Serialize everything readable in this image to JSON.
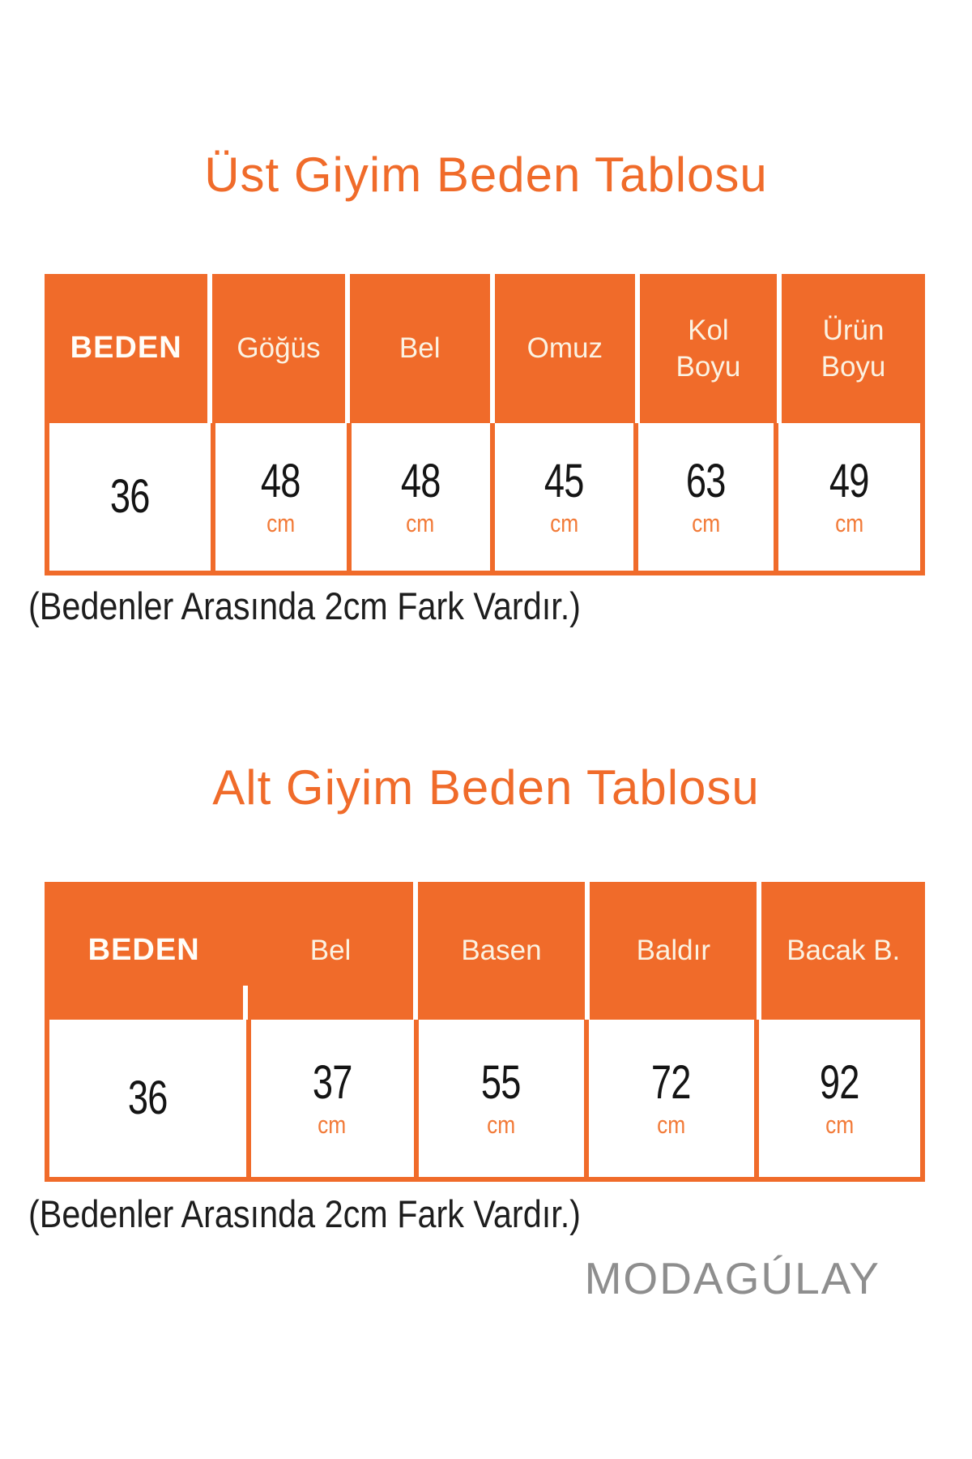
{
  "accent_color": "#F06B2A",
  "brand": "MODAGÚLAY",
  "upper_table": {
    "title": "Üst Giyim Beden Tablosu",
    "headers": [
      "BEDEN",
      "Göğüs",
      "Bel",
      "Omuz",
      "Kol\nBoyu",
      "Ürün\nBoyu"
    ],
    "size": "36",
    "cells": [
      {
        "value": "48",
        "unit": "cm"
      },
      {
        "value": "48",
        "unit": "cm"
      },
      {
        "value": "45",
        "unit": "cm"
      },
      {
        "value": "63",
        "unit": "cm"
      },
      {
        "value": "49",
        "unit": "cm"
      }
    ],
    "note": "(Bedenler Arasında 2cm Fark Vardır.)"
  },
  "lower_table": {
    "title": "Alt Giyim Beden Tablosu",
    "headers": [
      "BEDEN",
      "Bel",
      "Basen",
      "Baldır",
      "Bacak B."
    ],
    "size": "36",
    "cells": [
      {
        "value": "37",
        "unit": "cm"
      },
      {
        "value": "55",
        "unit": "cm"
      },
      {
        "value": "72",
        "unit": "cm"
      },
      {
        "value": "92",
        "unit": "cm"
      }
    ],
    "note": "(Bedenler Arasında 2cm Fark Vardır.)"
  }
}
